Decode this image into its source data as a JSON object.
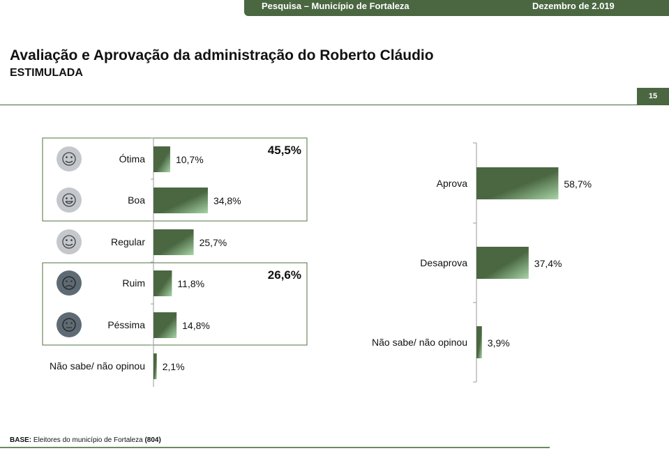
{
  "header": {
    "survey": "Pesquisa – Município de Fortaleza",
    "date": "Dezembro de 2.019"
  },
  "title": "Avaliação e Aprovação da administração do Roberto Cláudio",
  "subtitle": "ESTIMULADA",
  "page_number": "15",
  "footer": {
    "base_label": "BASE:",
    "base_text": " Eleitores do município de Fortaleza ",
    "base_count": "(804)"
  },
  "colors": {
    "bar": "#4a6741",
    "bar_light": "#a8d5a8",
    "icon_light": "#c4c8cc",
    "icon_dark": "#5e6b74"
  },
  "chart_data": [
    {
      "type": "bar",
      "orientation": "horizontal",
      "categories": [
        "Ótima",
        "Boa",
        "Regular",
        "Ruim",
        "Péssima",
        "Não sabe/ não opinou"
      ],
      "values": [
        10.7,
        34.8,
        25.7,
        11.8,
        14.8,
        2.1
      ],
      "labels": [
        "10,7%",
        "34,8%",
        "25,7%",
        "11,8%",
        "14,8%",
        "2,1%"
      ],
      "icons": [
        "heart-eyes-face-icon",
        "grinning-face-icon",
        "smiling-face-icon",
        "sad-face-icon",
        "neutral-face-icon",
        null
      ],
      "groups": [
        {
          "members": [
            "Ótima",
            "Boa"
          ],
          "total": "45,5%"
        },
        {
          "members": [
            "Ruim",
            "Péssima"
          ],
          "total": "26,6%"
        }
      ]
    },
    {
      "type": "bar",
      "orientation": "horizontal",
      "categories": [
        "Aprova",
        "Desaprova",
        "Não sabe/ não opinou"
      ],
      "values": [
        58.7,
        37.4,
        3.9
      ],
      "labels": [
        "58,7%",
        "37,4%",
        "3,9%"
      ]
    }
  ]
}
